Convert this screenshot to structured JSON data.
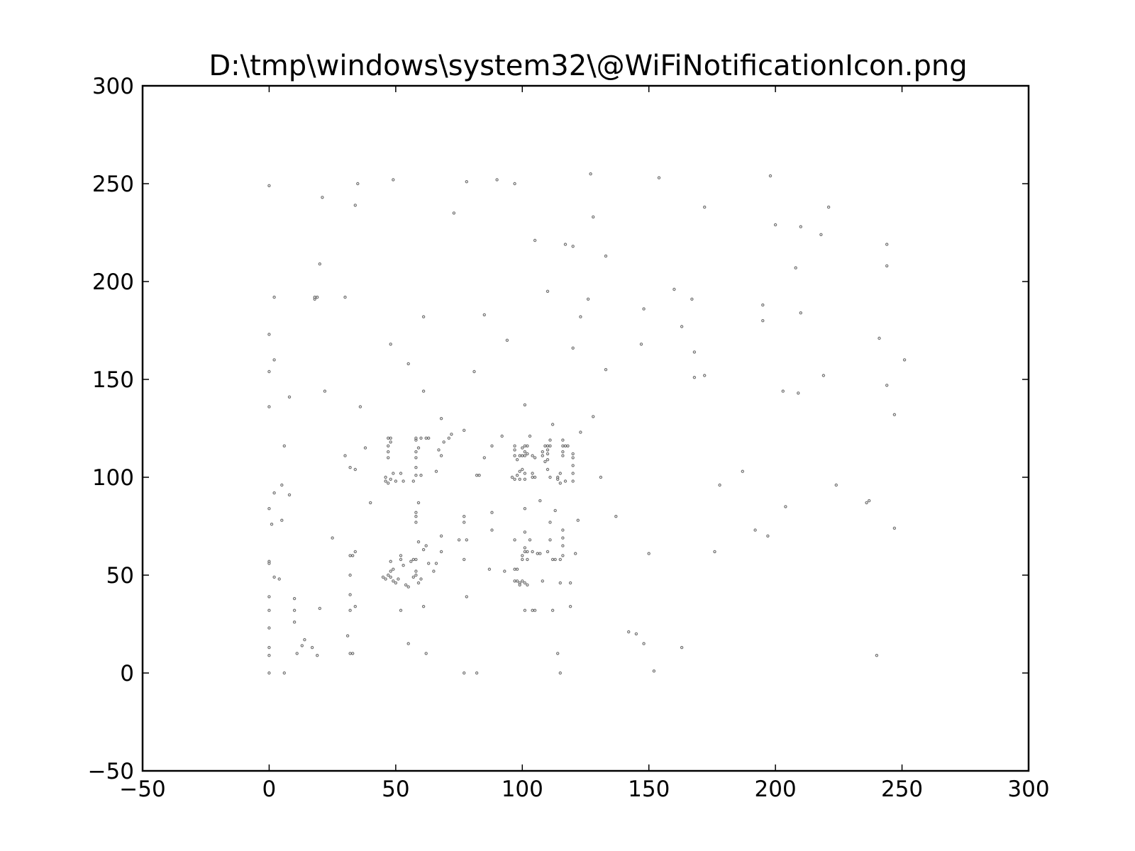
{
  "chart_data": {
    "type": "scatter",
    "title": "D:\\tmp\\windows\\system32\\@WiFiNotificationIcon.png",
    "xlabel": "",
    "ylabel": "",
    "xlim": [
      -50,
      300
    ],
    "ylim": [
      -50,
      300
    ],
    "x_ticks": [
      -50,
      0,
      50,
      100,
      150,
      200,
      250,
      300
    ],
    "y_ticks": [
      -50,
      0,
      50,
      100,
      150,
      200,
      250,
      300
    ],
    "x_tick_labels": [
      "−50",
      "0",
      "50",
      "100",
      "150",
      "200",
      "250",
      "300"
    ],
    "y_tick_labels": [
      "−50",
      "0",
      "50",
      "100",
      "150",
      "200",
      "250",
      "300"
    ],
    "grid": false,
    "legend": "none",
    "marker_color": "#000000",
    "points": [
      [
        0,
        249
      ],
      [
        2,
        192
      ],
      [
        0,
        173
      ],
      [
        2,
        160
      ],
      [
        0,
        154
      ],
      [
        0,
        136
      ],
      [
        6,
        116
      ],
      [
        8,
        141
      ],
      [
        5,
        96
      ],
      [
        0,
        84
      ],
      [
        2,
        92
      ],
      [
        1,
        76
      ],
      [
        8,
        91
      ],
      [
        5,
        78
      ],
      [
        0,
        57
      ],
      [
        0,
        56
      ],
      [
        2,
        49
      ],
      [
        4,
        48
      ],
      [
        0,
        39
      ],
      [
        0,
        32
      ],
      [
        0,
        23
      ],
      [
        0,
        13
      ],
      [
        0,
        9
      ],
      [
        0,
        0
      ],
      [
        6,
        0
      ],
      [
        10,
        38
      ],
      [
        10,
        32
      ],
      [
        10,
        26
      ],
      [
        14,
        17
      ],
      [
        13,
        14
      ],
      [
        11,
        10
      ],
      [
        17,
        13
      ],
      [
        19,
        9
      ],
      [
        20,
        33
      ],
      [
        18,
        191
      ],
      [
        18,
        192
      ],
      [
        19,
        192
      ],
      [
        20,
        209
      ],
      [
        21,
        243
      ],
      [
        22,
        144
      ],
      [
        25,
        69
      ],
      [
        30,
        111
      ],
      [
        30,
        192
      ],
      [
        31,
        19
      ],
      [
        32,
        10
      ],
      [
        33,
        10
      ],
      [
        32,
        32
      ],
      [
        32,
        40
      ],
      [
        32,
        50
      ],
      [
        32,
        60
      ],
      [
        33,
        60
      ],
      [
        34,
        62
      ],
      [
        32,
        105
      ],
      [
        34,
        104
      ],
      [
        34,
        34
      ],
      [
        34,
        239
      ],
      [
        35,
        250
      ],
      [
        36,
        136
      ],
      [
        38,
        115
      ],
      [
        40,
        87
      ],
      [
        45,
        49
      ],
      [
        46,
        48
      ],
      [
        47,
        50
      ],
      [
        48,
        49
      ],
      [
        49,
        47
      ],
      [
        50,
        46
      ],
      [
        48,
        52
      ],
      [
        48,
        57
      ],
      [
        49,
        53
      ],
      [
        46,
        98
      ],
      [
        46,
        100
      ],
      [
        47,
        97
      ],
      [
        48,
        99
      ],
      [
        49,
        102
      ],
      [
        50,
        98
      ],
      [
        47,
        110
      ],
      [
        47,
        113
      ],
      [
        47,
        116
      ],
      [
        48,
        118
      ],
      [
        47,
        120
      ],
      [
        48,
        120
      ],
      [
        48,
        168
      ],
      [
        49,
        252
      ],
      [
        51,
        48
      ],
      [
        52,
        60
      ],
      [
        52,
        58
      ],
      [
        53,
        55
      ],
      [
        52,
        32
      ],
      [
        52,
        102
      ],
      [
        53,
        98
      ],
      [
        54,
        45
      ],
      [
        55,
        44
      ],
      [
        55,
        158
      ],
      [
        55,
        15
      ],
      [
        56,
        57
      ],
      [
        57,
        58
      ],
      [
        58,
        50
      ],
      [
        58,
        52
      ],
      [
        57,
        49
      ],
      [
        59,
        46
      ],
      [
        60,
        48
      ],
      [
        58,
        58
      ],
      [
        59,
        67
      ],
      [
        58,
        77
      ],
      [
        58,
        80
      ],
      [
        58,
        82
      ],
      [
        59,
        87
      ],
      [
        57,
        98
      ],
      [
        58,
        101
      ],
      [
        60,
        101
      ],
      [
        58,
        105
      ],
      [
        58,
        110
      ],
      [
        58,
        113
      ],
      [
        59,
        115
      ],
      [
        58,
        119
      ],
      [
        58,
        120
      ],
      [
        60,
        120
      ],
      [
        61,
        144
      ],
      [
        61,
        182
      ],
      [
        61,
        34
      ],
      [
        62,
        10
      ],
      [
        62,
        120
      ],
      [
        63,
        120
      ],
      [
        62,
        65
      ],
      [
        61,
        63
      ],
      [
        63,
        56
      ],
      [
        65,
        52
      ],
      [
        66,
        56
      ],
      [
        66,
        103
      ],
      [
        67,
        114
      ],
      [
        68,
        111
      ],
      [
        68,
        130
      ],
      [
        68,
        62
      ],
      [
        68,
        70
      ],
      [
        69,
        118
      ],
      [
        71,
        120
      ],
      [
        72,
        122
      ],
      [
        73,
        235
      ],
      [
        75,
        68
      ],
      [
        77,
        124
      ],
      [
        78,
        251
      ],
      [
        77,
        80
      ],
      [
        77,
        77
      ],
      [
        77,
        58
      ],
      [
        78,
        68
      ],
      [
        78,
        39
      ],
      [
        77,
        0
      ],
      [
        82,
        0
      ],
      [
        81,
        154
      ],
      [
        82,
        101
      ],
      [
        83,
        101
      ],
      [
        85,
        110
      ],
      [
        85,
        183
      ],
      [
        87,
        53
      ],
      [
        88,
        116
      ],
      [
        88,
        82
      ],
      [
        88,
        73
      ],
      [
        90,
        252
      ],
      [
        92,
        121
      ],
      [
        93,
        52
      ],
      [
        94,
        170
      ],
      [
        96,
        100
      ],
      [
        97,
        99
      ],
      [
        98,
        101
      ],
      [
        99,
        103
      ],
      [
        98,
        109
      ],
      [
        97,
        111
      ],
      [
        97,
        114
      ],
      [
        97,
        116
      ],
      [
        99,
        111
      ],
      [
        100,
        115
      ],
      [
        101,
        116
      ],
      [
        101,
        113
      ],
      [
        100,
        111
      ],
      [
        101,
        111
      ],
      [
        100,
        104
      ],
      [
        101,
        102
      ],
      [
        99,
        99
      ],
      [
        101,
        99
      ],
      [
        97,
        250
      ],
      [
        97,
        68
      ],
      [
        97,
        53
      ],
      [
        98,
        53
      ],
      [
        97,
        47
      ],
      [
        98,
        47
      ],
      [
        99,
        46
      ],
      [
        99,
        45
      ],
      [
        100,
        47
      ],
      [
        101,
        46
      ],
      [
        102,
        45
      ],
      [
        100,
        60
      ],
      [
        100,
        58
      ],
      [
        101,
        62
      ],
      [
        102,
        62
      ],
      [
        102,
        58
      ],
      [
        101,
        64
      ],
      [
        101,
        72
      ],
      [
        101,
        84
      ],
      [
        101,
        137
      ],
      [
        103,
        121
      ],
      [
        102,
        116
      ],
      [
        102,
        112
      ],
      [
        104,
        111
      ],
      [
        105,
        110
      ],
      [
        104,
        102
      ],
      [
        104,
        100
      ],
      [
        105,
        100
      ],
      [
        105,
        221
      ],
      [
        105,
        32
      ],
      [
        104,
        32
      ],
      [
        101,
        32
      ],
      [
        103,
        68
      ],
      [
        104,
        62
      ],
      [
        106,
        61
      ],
      [
        107,
        88
      ],
      [
        107,
        61
      ],
      [
        108,
        47
      ],
      [
        108,
        111
      ],
      [
        108,
        113
      ],
      [
        109,
        116
      ],
      [
        109,
        108
      ],
      [
        110,
        116
      ],
      [
        110,
        114
      ],
      [
        110,
        112
      ],
      [
        110,
        109
      ],
      [
        110,
        104
      ],
      [
        110,
        195
      ],
      [
        110,
        62
      ],
      [
        111,
        119
      ],
      [
        112,
        127
      ],
      [
        111,
        116
      ],
      [
        111,
        100
      ],
      [
        111,
        77
      ],
      [
        112,
        58
      ],
      [
        111,
        68
      ],
      [
        112,
        32
      ],
      [
        113,
        58
      ],
      [
        113,
        83
      ],
      [
        114,
        100
      ],
      [
        114,
        99
      ],
      [
        115,
        102
      ],
      [
        115,
        97
      ],
      [
        114,
        10
      ],
      [
        115,
        0
      ],
      [
        115,
        46
      ],
      [
        115,
        58
      ],
      [
        116,
        116
      ],
      [
        116,
        113
      ],
      [
        116,
        111
      ],
      [
        116,
        119
      ],
      [
        117,
        116
      ],
      [
        117,
        98
      ],
      [
        116,
        73
      ],
      [
        116,
        69
      ],
      [
        116,
        65
      ],
      [
        116,
        60
      ],
      [
        117,
        219
      ],
      [
        118,
        116
      ],
      [
        119,
        46
      ],
      [
        119,
        34
      ],
      [
        120,
        218
      ],
      [
        120,
        166
      ],
      [
        120,
        112
      ],
      [
        120,
        110
      ],
      [
        120,
        106
      ],
      [
        120,
        102
      ],
      [
        120,
        98
      ],
      [
        121,
        61
      ],
      [
        122,
        78
      ],
      [
        123,
        182
      ],
      [
        123,
        123
      ],
      [
        126,
        191
      ],
      [
        127,
        255
      ],
      [
        128,
        233
      ],
      [
        128,
        131
      ],
      [
        131,
        100
      ],
      [
        133,
        213
      ],
      [
        133,
        155
      ],
      [
        137,
        80
      ],
      [
        142,
        21
      ],
      [
        145,
        20
      ],
      [
        147,
        168
      ],
      [
        148,
        186
      ],
      [
        148,
        15
      ],
      [
        150,
        61
      ],
      [
        152,
        1
      ],
      [
        154,
        253
      ],
      [
        160,
        196
      ],
      [
        163,
        177
      ],
      [
        163,
        13
      ],
      [
        167,
        191
      ],
      [
        168,
        164
      ],
      [
        168,
        151
      ],
      [
        172,
        152
      ],
      [
        172,
        238
      ],
      [
        176,
        62
      ],
      [
        178,
        96
      ],
      [
        187,
        103
      ],
      [
        192,
        73
      ],
      [
        195,
        188
      ],
      [
        195,
        180
      ],
      [
        197,
        70
      ],
      [
        198,
        254
      ],
      [
        200,
        229
      ],
      [
        203,
        144
      ],
      [
        204,
        85
      ],
      [
        208,
        207
      ],
      [
        209,
        143
      ],
      [
        210,
        228
      ],
      [
        210,
        184
      ],
      [
        218,
        224
      ],
      [
        219,
        152
      ],
      [
        221,
        238
      ],
      [
        224,
        96
      ],
      [
        236,
        87
      ],
      [
        237,
        88
      ],
      [
        240,
        9
      ],
      [
        241,
        171
      ],
      [
        244,
        219
      ],
      [
        244,
        208
      ],
      [
        244,
        147
      ],
      [
        247,
        132
      ],
      [
        247,
        74
      ],
      [
        251,
        160
      ]
    ]
  }
}
